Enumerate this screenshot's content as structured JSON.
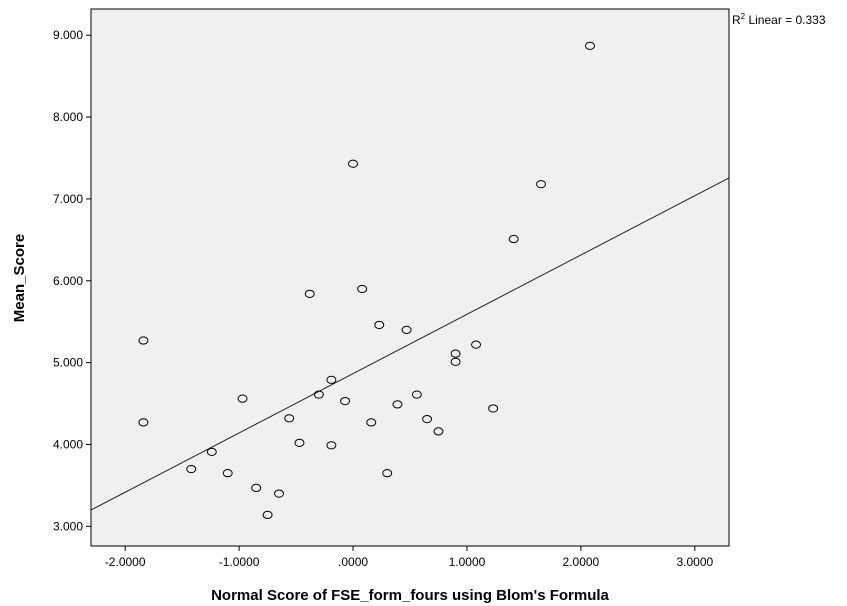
{
  "chart_data": {
    "type": "scatter",
    "title": "",
    "xlabel": "Normal Score of FSE_form_fours using Blom's Formula",
    "ylabel": "Mean_Score",
    "xlim": [
      -2.3,
      3.3
    ],
    "ylim": [
      2.76,
      9.32
    ],
    "x_ticks": [
      -2,
      -1,
      0,
      1,
      2,
      3
    ],
    "x_tick_labels": [
      "-2.0000",
      "-1.0000",
      ".0000",
      "1.0000",
      "2.0000",
      "3.0000"
    ],
    "y_ticks": [
      3,
      4,
      5,
      6,
      7,
      8,
      9
    ],
    "y_tick_labels": [
      "3.000",
      "4.000",
      "5.000",
      "6.000",
      "7.000",
      "8.000",
      "9.000"
    ],
    "grid": false,
    "background_color": "#f0f0f0",
    "marker": "hollow-circle",
    "points": [
      {
        "x": -1.84,
        "y": 5.27
      },
      {
        "x": -1.84,
        "y": 4.27
      },
      {
        "x": -1.42,
        "y": 3.7
      },
      {
        "x": -1.24,
        "y": 3.91
      },
      {
        "x": -1.1,
        "y": 3.65
      },
      {
        "x": -0.97,
        "y": 4.56
      },
      {
        "x": -0.85,
        "y": 3.47
      },
      {
        "x": -0.75,
        "y": 3.14
      },
      {
        "x": -0.65,
        "y": 3.4
      },
      {
        "x": -0.56,
        "y": 4.32
      },
      {
        "x": -0.47,
        "y": 4.02
      },
      {
        "x": -0.38,
        "y": 5.84
      },
      {
        "x": -0.3,
        "y": 4.61
      },
      {
        "x": -0.19,
        "y": 4.79
      },
      {
        "x": -0.19,
        "y": 3.99
      },
      {
        "x": -0.07,
        "y": 4.53
      },
      {
        "x": 0.0,
        "y": 7.43
      },
      {
        "x": 0.08,
        "y": 5.9
      },
      {
        "x": 0.16,
        "y": 4.27
      },
      {
        "x": 0.23,
        "y": 5.46
      },
      {
        "x": 0.3,
        "y": 3.65
      },
      {
        "x": 0.39,
        "y": 4.49
      },
      {
        "x": 0.47,
        "y": 5.4
      },
      {
        "x": 0.56,
        "y": 4.61
      },
      {
        "x": 0.65,
        "y": 4.31
      },
      {
        "x": 0.75,
        "y": 4.16
      },
      {
        "x": 0.9,
        "y": 5.11
      },
      {
        "x": 0.9,
        "y": 5.01
      },
      {
        "x": 1.08,
        "y": 5.22
      },
      {
        "x": 1.23,
        "y": 4.44
      },
      {
        "x": 1.41,
        "y": 6.51
      },
      {
        "x": 1.65,
        "y": 7.18
      },
      {
        "x": 2.08,
        "y": 8.87
      }
    ],
    "fit_line": {
      "type": "linear",
      "intercept": 4.866,
      "slope": 0.7245
    },
    "annotation": {
      "prefix": "R",
      "superscript": "2",
      "suffix": " Linear = 0.333"
    }
  }
}
